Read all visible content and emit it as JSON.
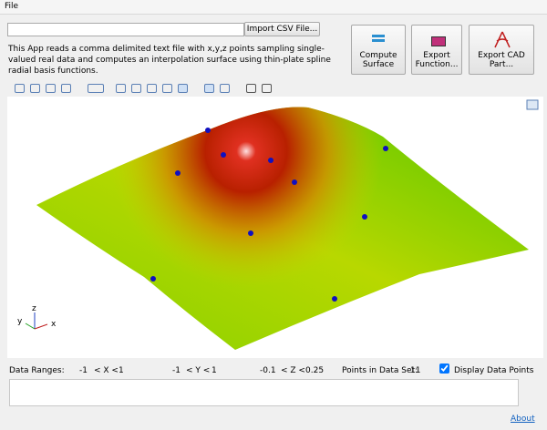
{
  "menu": {
    "file": "File"
  },
  "import_button": "Import CSV File...",
  "description": "This App reads a comma delimited text file with x,y,z points sampling single-valued real data and computes an interpolation surface using thin-plate spline radial basis functions.",
  "buttons": [
    "Compute Surface",
    "Export Function...",
    "Export CAD Part..."
  ],
  "axis_triad": {
    "x": "x",
    "y": "y",
    "z": "z"
  },
  "ranges": {
    "label": "Data Ranges:",
    "x": {
      "min": -1,
      "op": "< X <",
      "max": 1
    },
    "y": {
      "min": -1,
      "op": "< Y <",
      "max": 1
    },
    "z": {
      "min": -0.1,
      "op": "< Z <",
      "max": 0.25
    }
  },
  "points": {
    "label": "Points in Data Set:",
    "count": 11
  },
  "display_points": {
    "label": "Display Data Points",
    "checked": true
  },
  "about": "About"
}
